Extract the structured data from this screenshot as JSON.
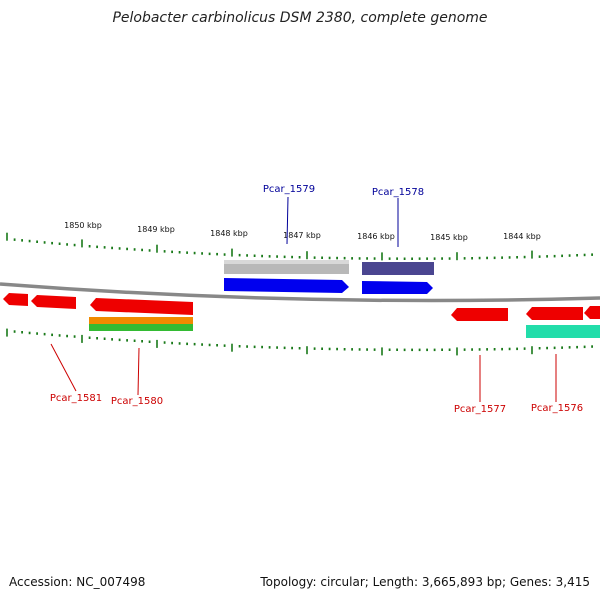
{
  "title": "Pelobacter carbinolicus DSM 2380, complete genome",
  "footer": {
    "accession": "Accession: NC_007498",
    "summary": "Topology: circular; Length: 3,665,893 bp; Genes: 3,415"
  },
  "scale_labels": [
    "1850 kbp",
    "1849 kbp",
    "1848 kbp",
    "1847 kbp",
    "1846 kbp",
    "1845 kbp",
    "1844 kbp"
  ],
  "colors": {
    "backbone": "#808080",
    "tick": "#1a7a1a",
    "gene_forward": "#0000ee",
    "gene_reverse": "#ee0000",
    "label_forward": "#000099",
    "label_reverse": "#cc0000",
    "feature_gray": "#b8b8b8",
    "feature_slate": "#4a4590",
    "feature_orange": "#f08a00",
    "feature_green": "#33bb33",
    "feature_teal": "#22ddaa"
  },
  "gene_labels": [
    "Pcar_1579",
    "Pcar_1578",
    "Pcar_1581",
    "Pcar_1580",
    "Pcar_1577",
    "Pcar_1576"
  ]
}
